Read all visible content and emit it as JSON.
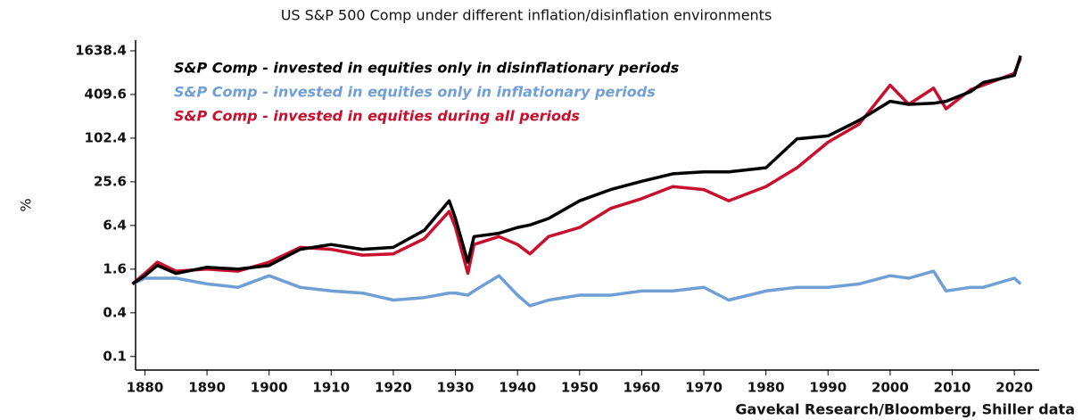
{
  "chart_data": {
    "type": "line",
    "title": "US S&P 500 Comp under different inflation/disinflation environments",
    "y_label": "%",
    "source": "Gavekal Research/Bloomberg, Shiller data",
    "log_scale": true,
    "x": [
      1878,
      1880,
      1882,
      1885,
      1890,
      1895,
      1900,
      1905,
      1910,
      1915,
      1920,
      1925,
      1929,
      1930,
      1932,
      1933,
      1937,
      1940,
      1942,
      1945,
      1950,
      1955,
      1960,
      1965,
      1970,
      1974,
      1980,
      1985,
      1990,
      1995,
      2000,
      2003,
      2007,
      2009,
      2013,
      2015,
      2020,
      2021
    ],
    "series": [
      {
        "name": "S&P Comp - invested in equities only in disinflationary periods",
        "color": "#000000",
        "values": [
          1.0,
          1.3,
          1.8,
          1.4,
          1.7,
          1.6,
          1.8,
          3.0,
          3.5,
          3.0,
          3.2,
          5.5,
          14,
          8,
          2,
          4.5,
          5,
          6,
          6.5,
          8,
          14,
          20,
          26,
          33,
          35,
          35,
          40,
          100,
          110,
          180,
          330,
          300,
          310,
          330,
          450,
          600,
          750,
          1400
        ]
      },
      {
        "name": "S&P Comp - invested in equities only in inflationary periods",
        "color": "#6f9fd4",
        "values": [
          1.0,
          1.2,
          1.2,
          1.2,
          1.0,
          0.9,
          1.3,
          0.9,
          0.8,
          0.75,
          0.6,
          0.65,
          0.75,
          0.75,
          0.7,
          0.8,
          1.3,
          0.7,
          0.5,
          0.6,
          0.7,
          0.7,
          0.8,
          0.8,
          0.9,
          0.6,
          0.8,
          0.9,
          0.9,
          1.0,
          1.3,
          1.2,
          1.5,
          0.8,
          0.9,
          0.9,
          1.2,
          1.0
        ]
      },
      {
        "name": "S&P Comp - invested in equities during all periods",
        "color": "#c8102e",
        "values": [
          1.0,
          1.4,
          2.0,
          1.5,
          1.6,
          1.5,
          2.0,
          3.2,
          3.0,
          2.5,
          2.6,
          4.2,
          10,
          6,
          1.4,
          3.5,
          4.5,
          3.5,
          2.6,
          4.5,
          6,
          11,
          15,
          22,
          20,
          14,
          22,
          40,
          90,
          160,
          550,
          300,
          500,
          260,
          480,
          550,
          800,
          1300
        ]
      }
    ],
    "xlim": [
      1878.5,
      2024
    ],
    "xticks": [
      1880,
      1890,
      1900,
      1910,
      1920,
      1930,
      1940,
      1950,
      1960,
      1970,
      1980,
      1990,
      2000,
      2010,
      2020
    ],
    "ylim": [
      0.065,
      2300
    ],
    "yticks": [
      0.1,
      0.4,
      1.6,
      6.4,
      25.6,
      102.4,
      409.6,
      1638.4
    ],
    "grid": false
  }
}
